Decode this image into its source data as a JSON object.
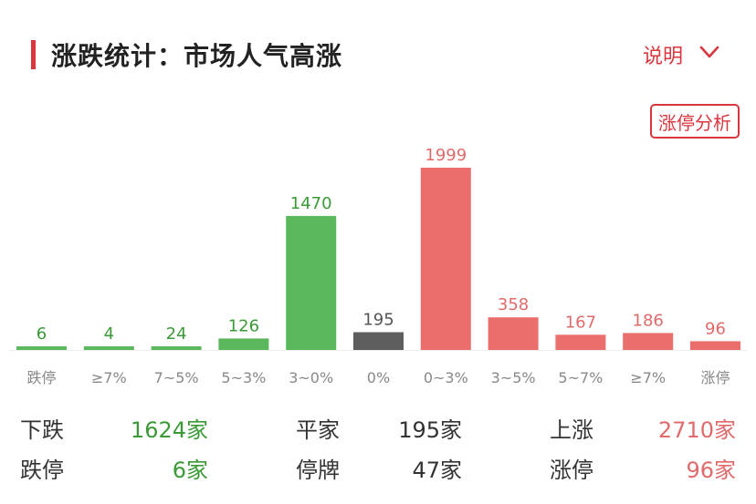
{
  "header": {
    "title": "涨跌统计：市场人气高涨",
    "explain_label": "说明",
    "analysis_button": "涨停分析"
  },
  "colors": {
    "accent": "#d9363e",
    "down": "#5cb85c",
    "flat": "#5e5e5e",
    "up": "#ea6e6c"
  },
  "icons": {
    "explain": "chevron-down-icon"
  },
  "chart_data": {
    "type": "bar",
    "categories": [
      "跌停",
      "≥7%",
      "7~5%",
      "5~3%",
      "3~0%",
      "0%",
      "0~3%",
      "3~5%",
      "5~7%",
      "≥7%",
      "涨停"
    ],
    "values": [
      6,
      4,
      24,
      126,
      1470,
      195,
      1999,
      358,
      167,
      186,
      96
    ],
    "bar_colors": [
      "#5cb85c",
      "#5cb85c",
      "#5cb85c",
      "#5cb85c",
      "#5cb85c",
      "#5e5e5e",
      "#ea6e6c",
      "#ea6e6c",
      "#ea6e6c",
      "#ea6e6c",
      "#ea6e6c"
    ],
    "label_colors": [
      "#3a9a36",
      "#3a9a36",
      "#3a9a36",
      "#3a9a36",
      "#3a9a36",
      "#555555",
      "#e06a6a",
      "#e06a6a",
      "#e06a6a",
      "#e06a6a",
      "#e06a6a"
    ],
    "ylim": [
      0,
      1999
    ],
    "grid": false,
    "legend": "none"
  },
  "stats": {
    "row1": {
      "down_label": "下跌",
      "down_value": "1624家",
      "flat_label": "平家",
      "flat_value": "195家",
      "up_label": "上涨",
      "up_value": "2710家"
    },
    "row2": {
      "limit_down_label": "跌停",
      "limit_down_value": "6家",
      "suspended_label": "停牌",
      "suspended_value": "47家",
      "limit_up_label": "涨停",
      "limit_up_value": "96家"
    }
  }
}
